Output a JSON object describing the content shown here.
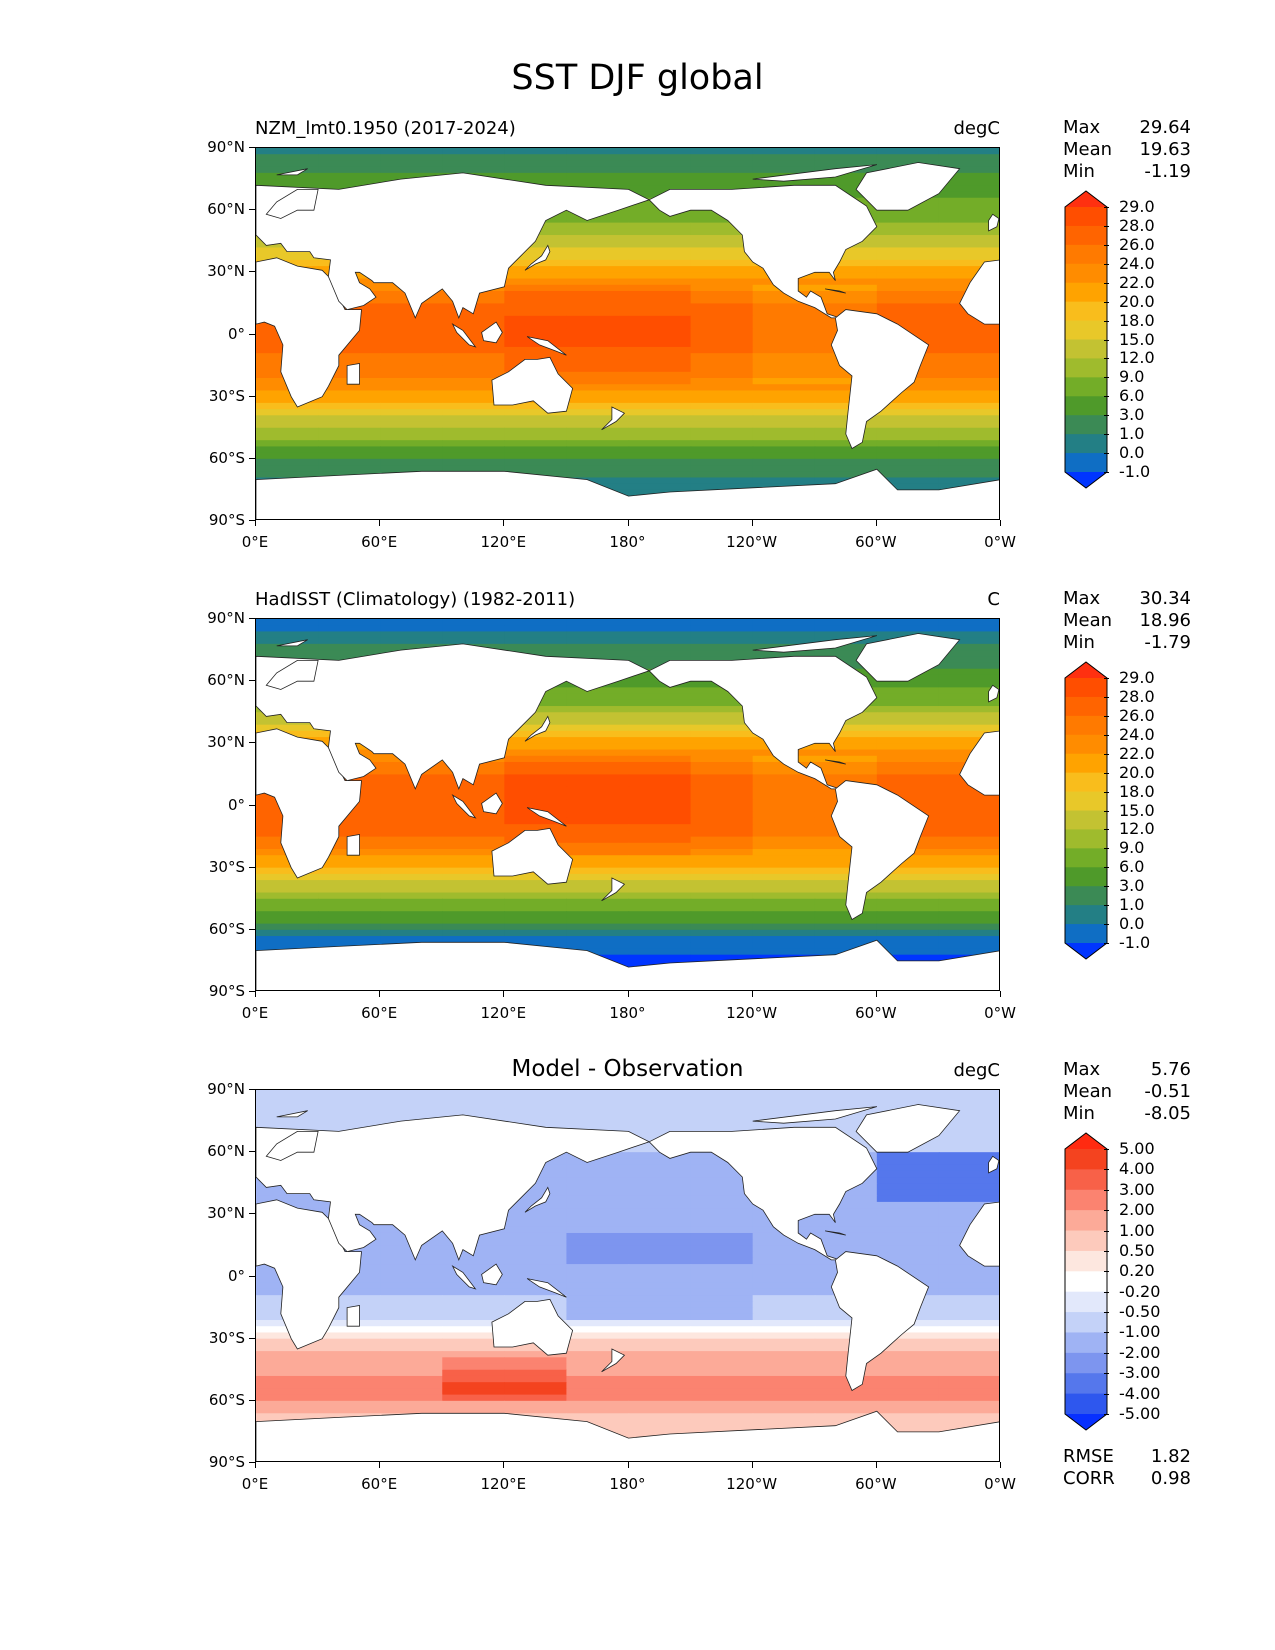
{
  "figure": {
    "title": "SST DJF global"
  },
  "chart_data": [
    {
      "type": "heatmap",
      "panel": "model",
      "title": "NZM_lmt0.1950 (2017-2024)",
      "units": "degC",
      "stats": {
        "max_label": "Max",
        "max": "29.64",
        "mean_label": "Mean",
        "mean": "19.63",
        "min_label": "Min",
        "min": "-1.19"
      },
      "xlabel": "",
      "ylabel": "",
      "xlim": [
        0,
        360
      ],
      "ylim": [
        -90,
        90
      ],
      "xticks": [
        "0°E",
        "60°E",
        "120°E",
        "180°",
        "120°W",
        "60°W",
        "0°W"
      ],
      "yticks": [
        "90°N",
        "60°N",
        "30°N",
        "0°",
        "30°S",
        "60°S",
        "90°S"
      ],
      "colorbar": {
        "levels": [
          "29.0",
          "28.0",
          "26.0",
          "24.0",
          "22.0",
          "20.0",
          "18.0",
          "15.0",
          "12.0",
          "9.0",
          "6.0",
          "3.0",
          "1.0",
          "0.0",
          "-1.0"
        ],
        "colors": [
          "#ff3010",
          "#ff4e00",
          "#ff6400",
          "#ff7a00",
          "#ff8c00",
          "#ffa300",
          "#f9bd1c",
          "#e8c829",
          "#c3c232",
          "#9fbb2d",
          "#73ad28",
          "#4f9a2a",
          "#3b8a55",
          "#237f85",
          "#0f6ec4",
          "#0035ff"
        ]
      },
      "lat_profile": {
        "lat": [
          90,
          60,
          45,
          30,
          15,
          0,
          -15,
          -30,
          -45,
          -60,
          -90
        ],
        "sst": [
          0.5,
          7,
          13,
          21,
          26,
          27,
          25.5,
          21,
          12,
          2,
          -1
        ]
      }
    },
    {
      "type": "heatmap",
      "panel": "observation",
      "title": "HadISST (Climatology) (1982-2011)",
      "units": "C",
      "stats": {
        "max_label": "Max",
        "max": "30.34",
        "mean_label": "Mean",
        "mean": "18.96",
        "min_label": "Min",
        "min": "-1.79"
      },
      "xlabel": "",
      "ylabel": "",
      "xlim": [
        0,
        360
      ],
      "ylim": [
        -90,
        90
      ],
      "xticks": [
        "0°E",
        "60°E",
        "120°E",
        "180°",
        "120°W",
        "60°W",
        "0°W"
      ],
      "yticks": [
        "90°N",
        "60°N",
        "30°N",
        "0°",
        "30°S",
        "60°S",
        "90°S"
      ],
      "colorbar": {
        "levels": [
          "29.0",
          "28.0",
          "26.0",
          "24.0",
          "22.0",
          "20.0",
          "18.0",
          "15.0",
          "12.0",
          "9.0",
          "6.0",
          "3.0",
          "1.0",
          "0.0",
          "-1.0"
        ],
        "colors": [
          "#ff3010",
          "#ff4e00",
          "#ff6400",
          "#ff7a00",
          "#ff8c00",
          "#ffa300",
          "#f9bd1c",
          "#e8c829",
          "#c3c232",
          "#9fbb2d",
          "#73ad28",
          "#4f9a2a",
          "#3b8a55",
          "#237f85",
          "#0f6ec4",
          "#0035ff"
        ]
      },
      "lat_profile": {
        "lat": [
          90,
          60,
          45,
          30,
          15,
          0,
          -15,
          -30,
          -45,
          -60,
          -75,
          -90
        ],
        "sst": [
          -1,
          4,
          11,
          21,
          26.5,
          27.5,
          26,
          20,
          9,
          0.5,
          -1.5,
          -1.5
        ]
      }
    },
    {
      "type": "heatmap",
      "panel": "difference",
      "title": "Model - Observation",
      "units": "degC",
      "stats": {
        "max_label": "Max",
        "max": "5.76",
        "mean_label": "Mean",
        "mean": "-0.51",
        "min_label": "Min",
        "min": "-8.05"
      },
      "metrics": {
        "rmse_label": "RMSE",
        "rmse": "1.82",
        "corr_label": "CORR",
        "corr": "0.98"
      },
      "xlabel": "",
      "ylabel": "",
      "xlim": [
        0,
        360
      ],
      "ylim": [
        -90,
        90
      ],
      "xticks": [
        "0°E",
        "60°E",
        "120°E",
        "180°",
        "120°W",
        "60°W",
        "0°W"
      ],
      "yticks": [
        "90°N",
        "60°N",
        "30°N",
        "0°",
        "30°S",
        "60°S",
        "90°S"
      ],
      "colorbar": {
        "levels": [
          "5.00",
          "4.00",
          "3.00",
          "2.00",
          "1.00",
          "0.50",
          "0.20",
          "-0.20",
          "-0.50",
          "-1.00",
          "-2.00",
          "-3.00",
          "-4.00",
          "-5.00"
        ],
        "colors": [
          "#ff2a10",
          "#f4431f",
          "#f86148",
          "#fb8370",
          "#fcaa98",
          "#fdcabc",
          "#fde7df",
          "#ffffff",
          "#e2e8fb",
          "#c4d2f8",
          "#9fb3f4",
          "#7d95ef",
          "#5577ec",
          "#2e57ee",
          "#0730ff"
        ]
      },
      "lat_profile": {
        "lat": [
          90,
          60,
          40,
          20,
          0,
          -20,
          -30,
          -45,
          -55,
          -65,
          -90
        ],
        "sst": [
          -0.5,
          -1,
          -1.2,
          -1.5,
          -1.2,
          -0.8,
          0.5,
          1.5,
          3,
          1,
          0
        ]
      }
    }
  ]
}
